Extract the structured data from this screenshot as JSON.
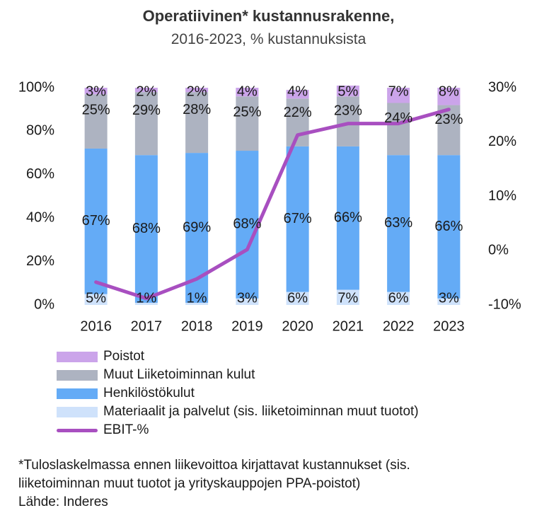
{
  "title": "Operatiivinen* kustannusrakenne,",
  "subtitle": "2016-2023, % kustannuksista",
  "chart_data": {
    "type": "bar",
    "stacked": true,
    "categories": [
      "2016",
      "2017",
      "2018",
      "2019",
      "2020",
      "2021",
      "2022",
      "2023"
    ],
    "series": [
      {
        "name": "Materiaalit ja palvelut (sis. liiketoiminnan muut tuotot)",
        "values": [
          5,
          1,
          1,
          3,
          6,
          7,
          6,
          3
        ],
        "labels": [
          "5%",
          "1%",
          "1%",
          "3%",
          "6%",
          "7%",
          "6%",
          "3%"
        ],
        "color": "#cfe2fb"
      },
      {
        "name": "Henkilöstökulut",
        "values": [
          67,
          68,
          69,
          68,
          67,
          66,
          63,
          66
        ],
        "labels": [
          "67%",
          "68%",
          "69%",
          "68%",
          "67%",
          "66%",
          "63%",
          "66%"
        ],
        "color": "#64abf6"
      },
      {
        "name": "Muut Liiketoiminnan kulut",
        "values": [
          25,
          29,
          28,
          25,
          22,
          23,
          24,
          23
        ],
        "labels": [
          "25%",
          "29%",
          "28%",
          "25%",
          "22%",
          "23%",
          "24%",
          "23%"
        ],
        "color": "#adb3c1"
      },
      {
        "name": "Poistot",
        "values": [
          3,
          2,
          2,
          4,
          4,
          5,
          7,
          8
        ],
        "labels": [
          "3%",
          "2%",
          "2%",
          "4%",
          "4%",
          "5%",
          "7%",
          "8%"
        ],
        "color": "#cba4ea"
      }
    ],
    "line_series": {
      "name": "EBIT-%",
      "axis": "right",
      "values": [
        -5.8,
        -8.8,
        -5.2,
        0.2,
        21.3,
        23.4,
        23.4,
        26.0
      ],
      "color": "#a84fc0"
    },
    "y_left": {
      "ylim": [
        0,
        100
      ],
      "ticks": [
        0,
        20,
        40,
        60,
        80,
        100
      ],
      "tick_labels": [
        "0%",
        "20%",
        "40%",
        "60%",
        "80%",
        "100%"
      ]
    },
    "y_right": {
      "ylim": [
        -10,
        30
      ],
      "ticks": [
        -10,
        0,
        10,
        20,
        30
      ],
      "tick_labels": [
        "-10%",
        "0%",
        "10%",
        "20%",
        "30%"
      ]
    },
    "grid": false,
    "legend_position": "bottom"
  },
  "legend": [
    {
      "label": "Poistot",
      "color": "#cba4ea",
      "kind": "box"
    },
    {
      "label": "Muut Liiketoiminnan kulut",
      "color": "#adb3c1",
      "kind": "box"
    },
    {
      "label": "Henkilöstökulut",
      "color": "#64abf6",
      "kind": "box"
    },
    {
      "label": "Materiaalit ja palvelut (sis. liiketoiminnan muut tuotot)",
      "color": "#cfe2fb",
      "kind": "box"
    },
    {
      "label": "EBIT-%",
      "color": "#a84fc0",
      "kind": "line"
    }
  ],
  "footnote": {
    "line1": "*Tuloslaskelmassa ennen liikevoittoa kirjattavat kustannukset (sis.",
    "line2": "liiketoiminnan muut tuotot ja yrityskauppojen PPA-poistot)",
    "source": "Lähde: Inderes"
  }
}
